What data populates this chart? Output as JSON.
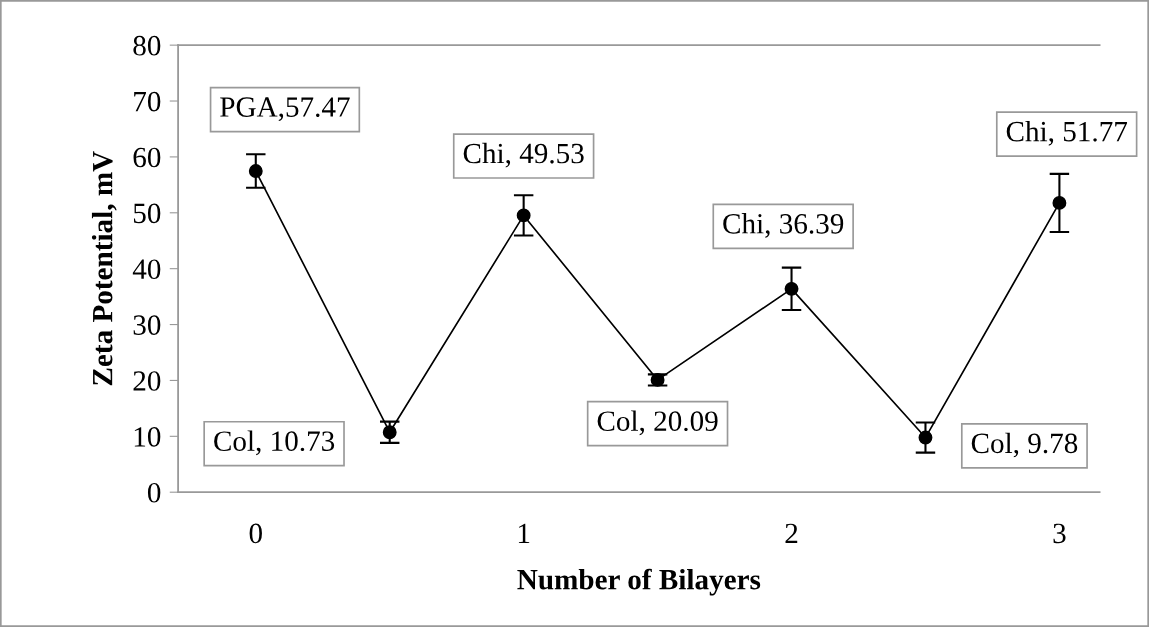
{
  "chart_data": {
    "type": "line",
    "xlabel": "Number of Bilayers",
    "ylabel": "Zeta Potential, mV",
    "x": [
      0,
      0.5,
      1,
      1.5,
      2,
      2.5,
      3
    ],
    "series": [
      {
        "color": "#000000",
        "values": [
          57.47,
          10.73,
          49.53,
          20.09,
          36.39,
          9.78,
          51.77
        ],
        "errors": [
          3.0,
          1.9,
          3.6,
          1.0,
          3.8,
          2.7,
          5.2
        ]
      }
    ],
    "xlim": [
      -0.29,
      3.15
    ],
    "xticks": [
      0,
      1,
      2,
      3
    ],
    "ylim": [
      0,
      80
    ],
    "yticks": [
      0,
      10,
      20,
      30,
      40,
      50,
      60,
      70,
      80
    ],
    "marker": "circle",
    "line_style": "solid",
    "grid": false,
    "legend": false,
    "annotations": [
      {
        "text": "PGA,57.47",
        "x": 0,
        "y": 57.47
      },
      {
        "text": "Col, 10.73",
        "x": 0.5,
        "y": 10.73
      },
      {
        "text": "Chi, 49.53",
        "x": 1,
        "y": 49.53
      },
      {
        "text": "Col, 20.09",
        "x": 1.5,
        "y": 20.09
      },
      {
        "text": "Chi, 36.39",
        "x": 2,
        "y": 36.39
      },
      {
        "text": "Col, 9.78",
        "x": 2.5,
        "y": 9.78
      },
      {
        "text": "Chi, 51.77",
        "x": 3,
        "y": 51.77
      }
    ]
  }
}
